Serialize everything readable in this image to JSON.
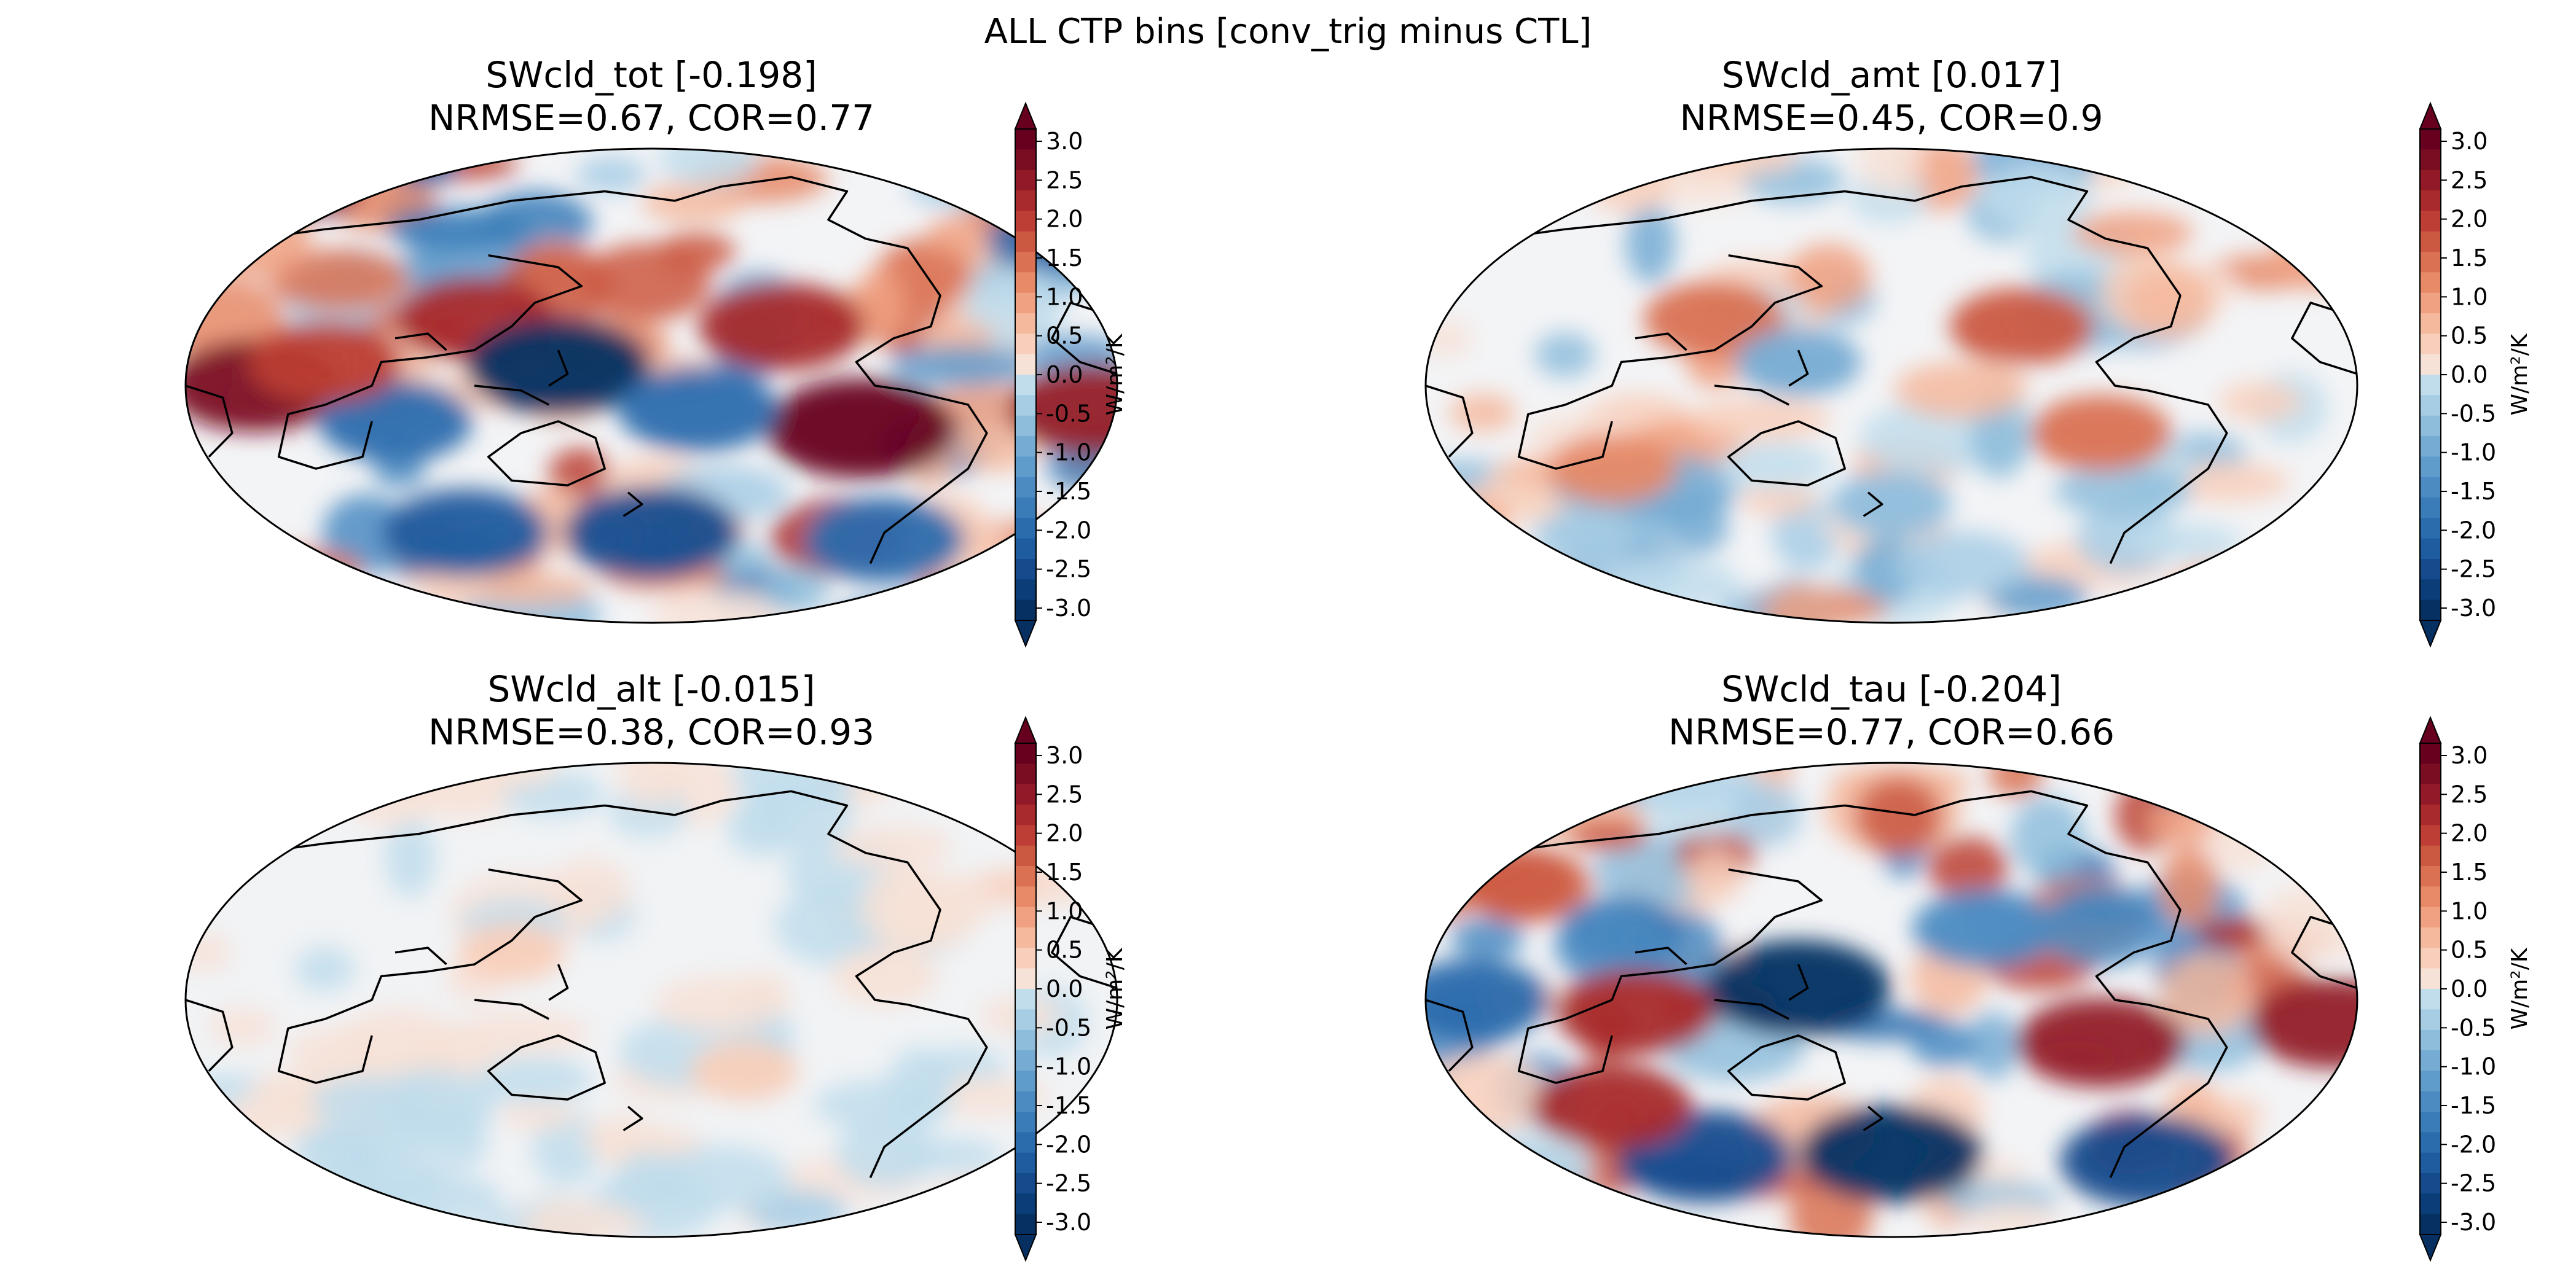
{
  "figure": {
    "suptitle": "ALL CTP bins [conv_trig minus CTL]"
  },
  "panels": [
    {
      "id": "tot",
      "title": "SWcld_tot [-0.198]",
      "stats": "NRMSE=0.67, COR=0.77",
      "intensity": 1.0
    },
    {
      "id": "amt",
      "title": "SWcld_amt [0.017]",
      "stats": "NRMSE=0.45, COR=0.9",
      "intensity": 0.5
    },
    {
      "id": "alt",
      "title": "SWcld_alt [-0.015]",
      "stats": "NRMSE=0.38, COR=0.93",
      "intensity": 0.12
    },
    {
      "id": "tau",
      "title": "SWcld_tau [-0.204]",
      "stats": "NRMSE=0.77, COR=0.66",
      "intensity": 0.95
    }
  ],
  "colorbar": {
    "label": "W/m²/K",
    "ticks": [
      "3.0",
      "2.5",
      "2.0",
      "1.5",
      "1.0",
      "0.5",
      "0.0",
      "-0.5",
      "-1.0",
      "-1.5",
      "-2.0",
      "-2.5",
      "-3.0"
    ],
    "min": -3.0,
    "max": 3.0,
    "levels": 24,
    "colors_high": "#67001f",
    "colors_low": "#053061"
  },
  "colormap": "RdBu_r",
  "projection": "Robinson"
}
